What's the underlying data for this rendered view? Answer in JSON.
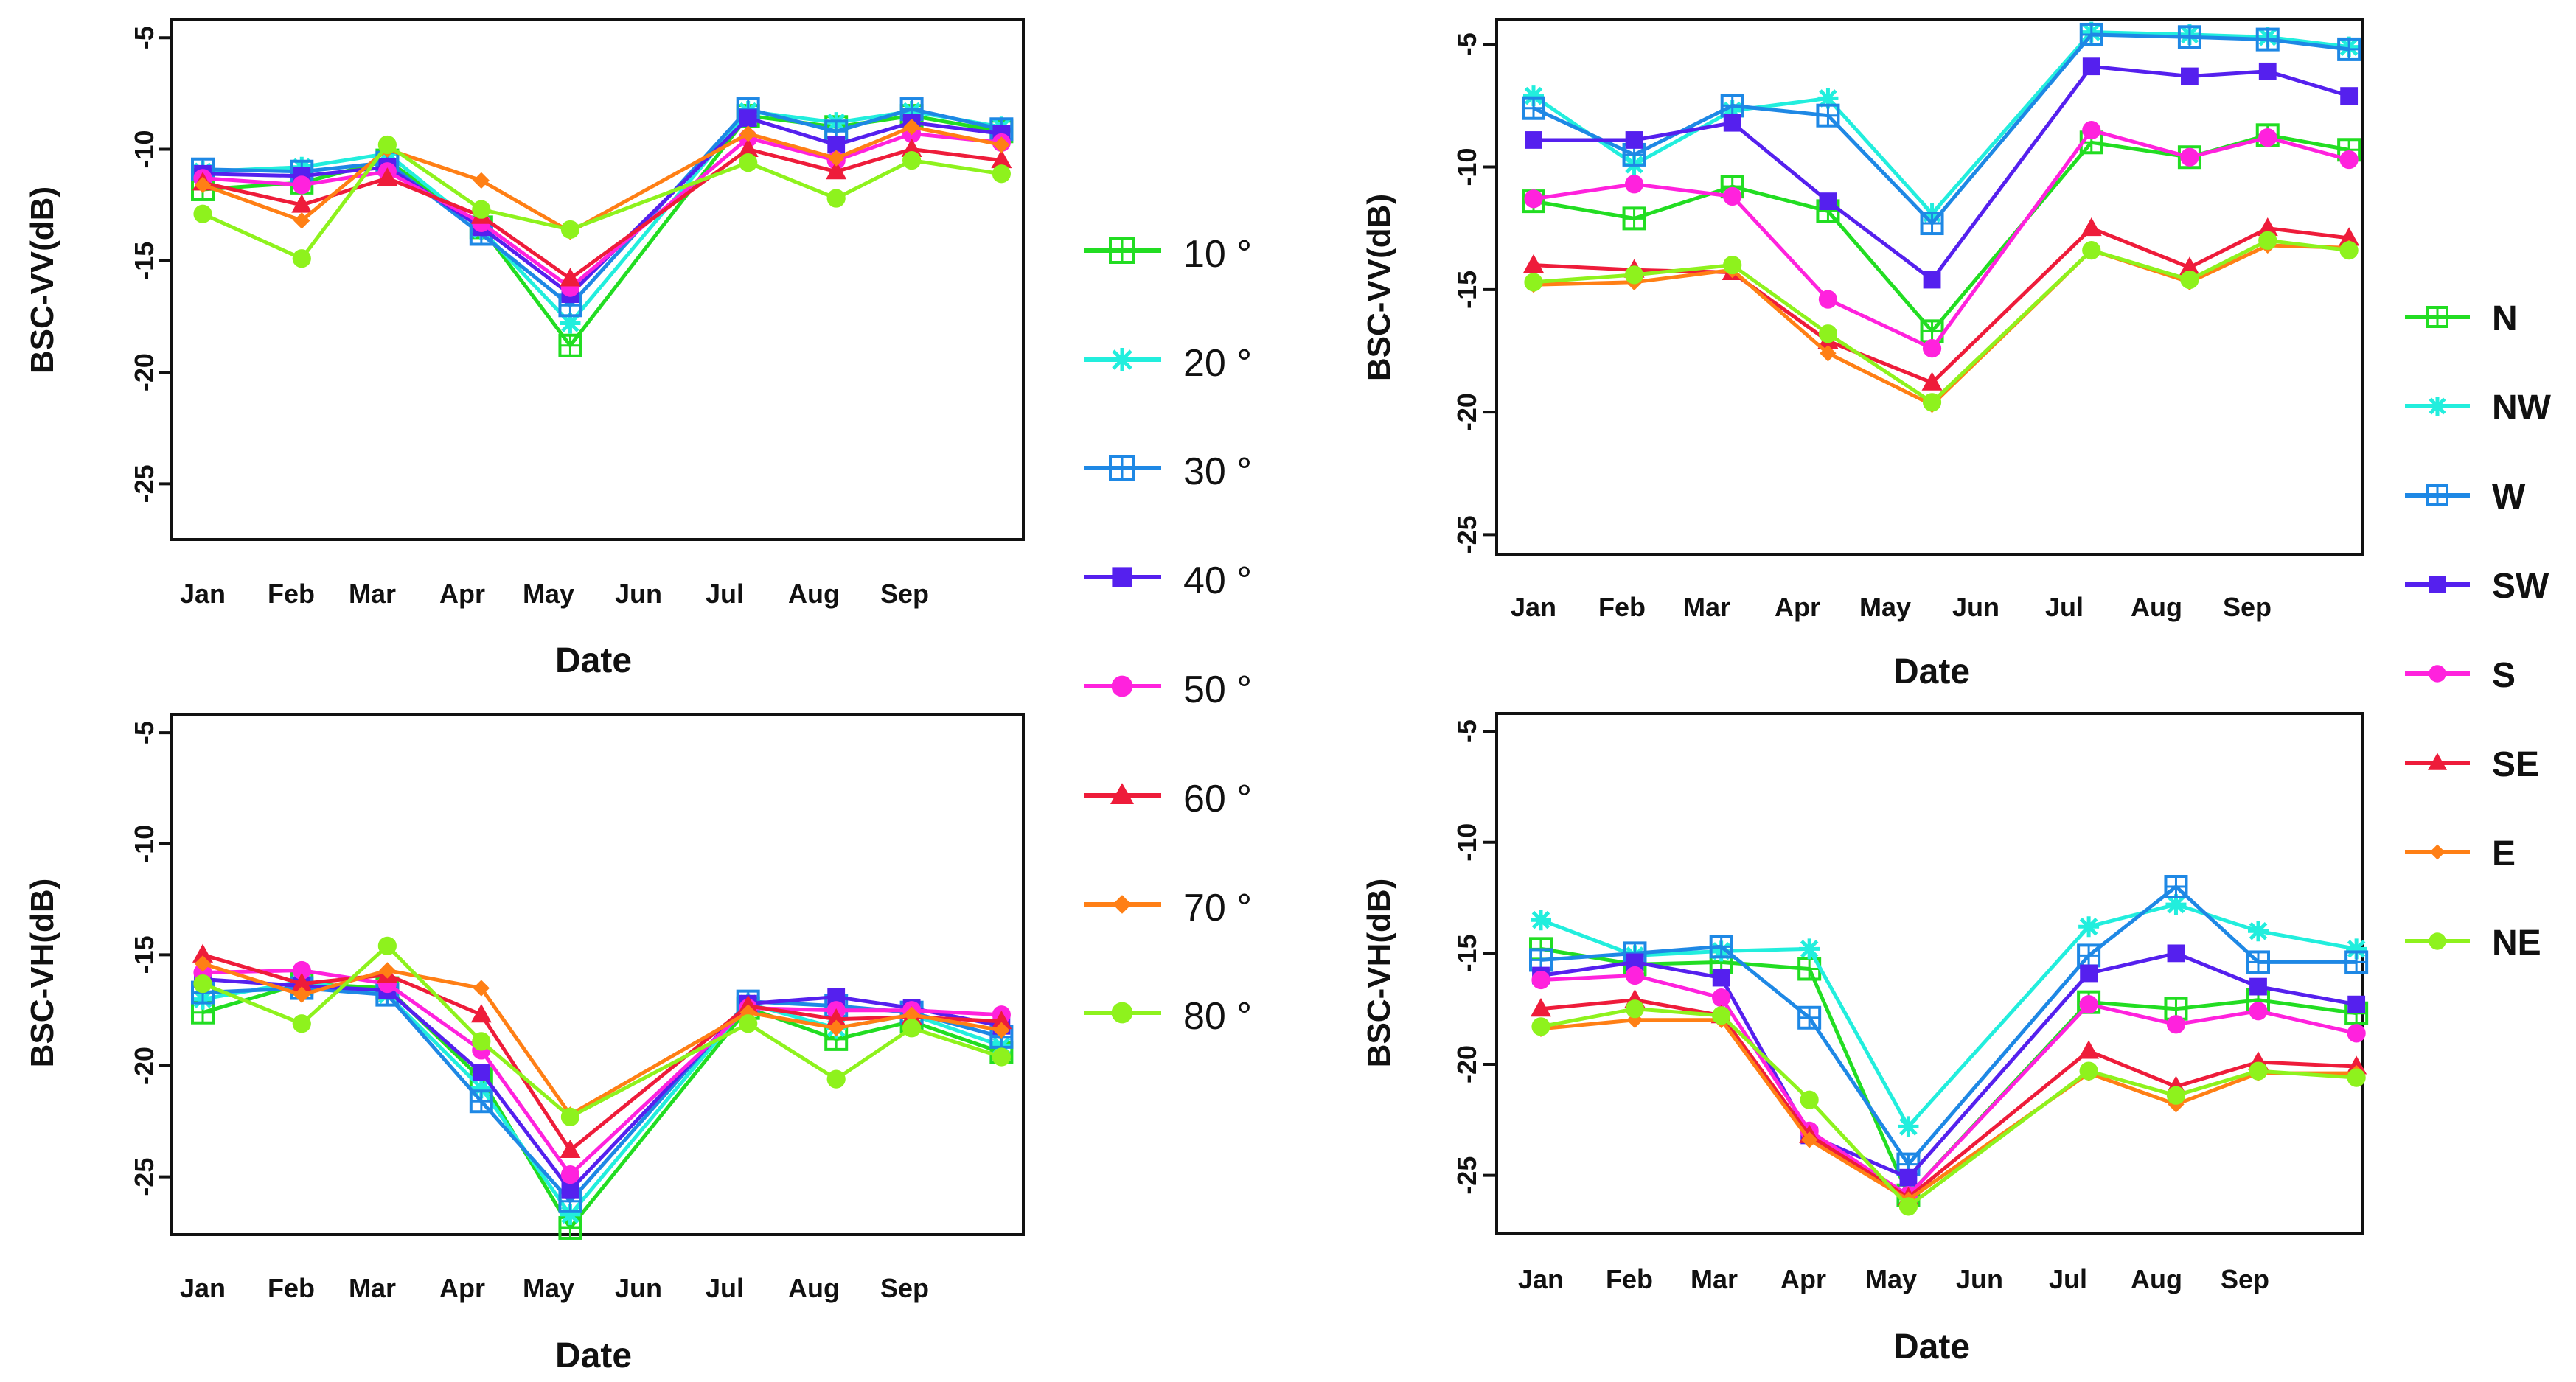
{
  "months": [
    "Jan",
    "Feb",
    "Mar",
    "Apr",
    "May",
    "Jun",
    "Jul",
    "Aug",
    "Sep"
  ],
  "x_label": "Date",
  "legend_angle": [
    "10 °",
    "20 °",
    "30 °",
    "40 °",
    "50 °",
    "60 °",
    "70 °",
    "80 °"
  ],
  "legend_aspect": [
    "N",
    "NW",
    "W",
    "SW",
    "S",
    "SE",
    "E",
    "NE"
  ],
  "chart_data": [
    {
      "id": "tl",
      "type": "line",
      "title": "",
      "xlabel": "Date",
      "ylabel": "BSC-VV(dB)",
      "ylim": [
        -27.5,
        -4.2
      ],
      "yticks": [
        -5,
        -10,
        -15,
        -20,
        -25
      ],
      "categories": [
        "Jan",
        "Feb",
        "Mar",
        "Apr",
        "May",
        "Jun",
        "Jul",
        "Aug",
        "Sep"
      ],
      "x": [
        0.0,
        1.18,
        2.2,
        3.32,
        4.38,
        6.5,
        7.55,
        8.45,
        9.52
      ],
      "series": [
        {
          "name": "10 °",
          "color": "#22dd22",
          "marker": "sq",
          "values": [
            -11.8,
            -11.5,
            -10.5,
            -13.5,
            -18.8,
            -8.5,
            -9.0,
            -8.5,
            -9.2
          ]
        },
        {
          "name": "20 °",
          "color": "#22eedd",
          "marker": "star",
          "values": [
            -11.0,
            -10.8,
            -10.2,
            -13.6,
            -17.8,
            -8.3,
            -8.8,
            -8.3,
            -9.0
          ]
        },
        {
          "name": "30 °",
          "color": "#1e88e5",
          "marker": "sq",
          "values": [
            -10.9,
            -11.0,
            -10.6,
            -13.8,
            -17.0,
            -8.2,
            -9.2,
            -8.2,
            -9.1
          ]
        },
        {
          "name": "40 °",
          "color": "#5520ee",
          "marker": "fsq",
          "values": [
            -11.1,
            -11.2,
            -10.8,
            -13.5,
            -16.5,
            -8.6,
            -9.8,
            -8.8,
            -9.3
          ]
        },
        {
          "name": "50 °",
          "color": "#ff22dd",
          "marker": "circle",
          "values": [
            -11.3,
            -11.6,
            -11.0,
            -13.3,
            -16.2,
            -9.5,
            -10.5,
            -9.3,
            -9.7
          ]
        },
        {
          "name": "60 °",
          "color": "#ee1c3a",
          "marker": "tri",
          "values": [
            -11.5,
            -12.5,
            -11.3,
            -13.0,
            -15.8,
            -10.0,
            -11.0,
            -10.0,
            -10.5
          ]
        },
        {
          "name": "70 °",
          "color": "#ff7f15",
          "marker": "diamond",
          "values": [
            -11.6,
            -13.2,
            -10.0,
            -11.4,
            -13.7,
            -9.3,
            -10.4,
            -9.0,
            -9.8
          ]
        },
        {
          "name": "80 °",
          "color": "#8ef21d",
          "marker": "circle",
          "values": [
            -12.9,
            -14.9,
            -9.8,
            -12.7,
            -13.6,
            -10.6,
            -12.2,
            -10.5,
            -11.1
          ]
        }
      ]
    },
    {
      "id": "tr",
      "type": "line",
      "title": "",
      "xlabel": "Date",
      "ylabel": "BSC-VV(dB)",
      "ylim": [
        -25.8,
        -4.0
      ],
      "yticks": [
        -5,
        -10,
        -15,
        -20,
        -25
      ],
      "categories": [
        "Jan",
        "Feb",
        "Mar",
        "Apr",
        "May",
        "Jun",
        "Jul",
        "Aug",
        "Sep"
      ],
      "x": [
        0.0,
        1.2,
        2.37,
        3.51,
        4.75,
        6.65,
        7.82,
        8.75,
        9.72
      ],
      "series": [
        {
          "name": "N",
          "color": "#22dd22",
          "marker": "sq",
          "values": [
            -11.4,
            -12.1,
            -10.8,
            -11.8,
            -16.7,
            -9.0,
            -9.6,
            -8.7,
            -9.3
          ]
        },
        {
          "name": "NW",
          "color": "#22eedd",
          "marker": "star",
          "values": [
            -7.1,
            -9.9,
            -7.7,
            -7.2,
            -11.9,
            -4.5,
            -4.6,
            -4.7,
            -5.1
          ]
        },
        {
          "name": "W",
          "color": "#1e88e5",
          "marker": "sq",
          "values": [
            -7.6,
            -9.5,
            -7.5,
            -7.9,
            -12.3,
            -4.6,
            -4.7,
            -4.8,
            -5.2
          ]
        },
        {
          "name": "SW",
          "color": "#5520ee",
          "marker": "fsq",
          "values": [
            -8.9,
            -8.9,
            -8.2,
            -11.4,
            -14.6,
            -5.9,
            -6.3,
            -6.1,
            -7.1
          ]
        },
        {
          "name": "S",
          "color": "#ff22dd",
          "marker": "circle",
          "values": [
            -11.3,
            -10.7,
            -11.2,
            -15.4,
            -17.4,
            -8.5,
            -9.6,
            -8.8,
            -9.7
          ]
        },
        {
          "name": "SE",
          "color": "#ee1c3a",
          "marker": "tri",
          "values": [
            -14.0,
            -14.2,
            -14.3,
            -17.1,
            -18.8,
            -12.5,
            -14.1,
            -12.5,
            -12.9
          ]
        },
        {
          "name": "E",
          "color": "#ff7f15",
          "marker": "diamond",
          "values": [
            -14.8,
            -14.7,
            -14.2,
            -17.6,
            -19.7,
            -13.4,
            -14.7,
            -13.2,
            -13.3
          ]
        },
        {
          "name": "NE",
          "color": "#8ef21d",
          "marker": "circle",
          "values": [
            -14.7,
            -14.4,
            -14.0,
            -16.8,
            -19.6,
            -13.4,
            -14.6,
            -13.0,
            -13.4
          ]
        }
      ]
    },
    {
      "id": "bl",
      "type": "line",
      "title": "",
      "xlabel": "Date",
      "ylabel": "BSC-VH(dB)",
      "ylim": [
        -27.6,
        -4.2
      ],
      "yticks": [
        -5,
        -10,
        -15,
        -20,
        -25
      ],
      "categories": [
        "Jan",
        "Feb",
        "Mar",
        "Apr",
        "May",
        "Jun",
        "Jul",
        "Aug",
        "Sep"
      ],
      "x": [
        0.0,
        1.18,
        2.2,
        3.32,
        4.38,
        6.5,
        7.55,
        8.45,
        9.52
      ],
      "series": [
        {
          "name": "10 °",
          "color": "#22dd22",
          "marker": "sq",
          "values": [
            -17.6,
            -16.3,
            -16.5,
            -20.6,
            -27.3,
            -17.4,
            -18.8,
            -18.0,
            -19.4
          ]
        },
        {
          "name": "20 °",
          "color": "#22eedd",
          "marker": "star",
          "values": [
            -17.0,
            -16.2,
            -16.8,
            -21.0,
            -26.7,
            -17.2,
            -18.3,
            -17.7,
            -19.1
          ]
        },
        {
          "name": "30 °",
          "color": "#1e88e5",
          "marker": "sq",
          "values": [
            -16.7,
            -16.5,
            -16.8,
            -21.6,
            -26.1,
            -17.1,
            -17.3,
            -17.6,
            -18.7
          ]
        },
        {
          "name": "40 °",
          "color": "#5520ee",
          "marker": "fsq",
          "values": [
            -16.1,
            -16.4,
            -16.6,
            -20.3,
            -25.6,
            -17.2,
            -16.9,
            -17.4,
            -18.2
          ]
        },
        {
          "name": "50 °",
          "color": "#ff22dd",
          "marker": "circle",
          "values": [
            -15.8,
            -15.7,
            -16.3,
            -19.3,
            -24.9,
            -17.4,
            -17.5,
            -17.5,
            -17.7
          ]
        },
        {
          "name": "60 °",
          "color": "#ee1c3a",
          "marker": "tri",
          "values": [
            -15.0,
            -16.3,
            -15.9,
            -17.7,
            -23.8,
            -17.3,
            -17.9,
            -17.8,
            -18.0
          ]
        },
        {
          "name": "70 °",
          "color": "#ff7f15",
          "marker": "diamond",
          "values": [
            -15.4,
            -16.8,
            -15.7,
            -16.5,
            -22.2,
            -17.6,
            -18.3,
            -17.7,
            -18.4
          ]
        },
        {
          "name": "80 °",
          "color": "#8ef21d",
          "marker": "circle",
          "values": [
            -16.3,
            -18.1,
            -14.6,
            -18.9,
            -22.3,
            -18.1,
            -20.6,
            -18.3,
            -19.6
          ]
        }
      ]
    },
    {
      "id": "br",
      "type": "line",
      "title": "",
      "xlabel": "Date",
      "ylabel": "BSC-VH(dB)",
      "ylim": [
        -27.6,
        -4.2
      ],
      "yticks": [
        -5,
        -10,
        -15,
        -20,
        -25
      ],
      "categories": [
        "Jan",
        "Feb",
        "Mar",
        "Apr",
        "May",
        "Jun",
        "Jul",
        "Aug",
        "Sep"
      ],
      "x": [
        0.0,
        1.12,
        2.15,
        3.2,
        4.38,
        6.53,
        7.57,
        8.55,
        9.72
      ],
      "series": [
        {
          "name": "N",
          "color": "#22dd22",
          "marker": "sq",
          "values": [
            -14.8,
            -15.5,
            -15.4,
            -15.7,
            -25.9,
            -17.2,
            -17.5,
            -17.1,
            -17.7
          ]
        },
        {
          "name": "NW",
          "color": "#22eedd",
          "marker": "star",
          "values": [
            -13.5,
            -15.1,
            -14.9,
            -14.8,
            -22.8,
            -13.8,
            -12.8,
            -14.0,
            -14.8
          ]
        },
        {
          "name": "W",
          "color": "#1e88e5",
          "marker": "sq",
          "values": [
            -15.3,
            -15.0,
            -14.7,
            -17.9,
            -24.5,
            -15.1,
            -12.0,
            -15.4,
            -15.4
          ]
        },
        {
          "name": "SW",
          "color": "#5520ee",
          "marker": "fsq",
          "values": [
            -16.0,
            -15.4,
            -16.1,
            -23.2,
            -25.1,
            -15.9,
            -15.0,
            -16.5,
            -17.3
          ]
        },
        {
          "name": "S",
          "color": "#ff22dd",
          "marker": "circle",
          "values": [
            -16.2,
            -16.0,
            -17.0,
            -23.0,
            -25.9,
            -17.3,
            -18.2,
            -17.6,
            -18.6
          ]
        },
        {
          "name": "SE",
          "color": "#ee1c3a",
          "marker": "tri",
          "values": [
            -17.5,
            -17.1,
            -17.8,
            -23.2,
            -26.0,
            -19.4,
            -21.0,
            -19.9,
            -20.1
          ]
        },
        {
          "name": "E",
          "color": "#ff7f15",
          "marker": "diamond",
          "values": [
            -18.4,
            -18.0,
            -18.0,
            -23.4,
            -26.1,
            -20.4,
            -21.8,
            -20.4,
            -20.4
          ]
        },
        {
          "name": "NE",
          "color": "#8ef21d",
          "marker": "circle",
          "values": [
            -18.3,
            -17.5,
            -17.8,
            -21.6,
            -26.4,
            -20.3,
            -21.4,
            -20.3,
            -20.6
          ]
        }
      ]
    }
  ]
}
